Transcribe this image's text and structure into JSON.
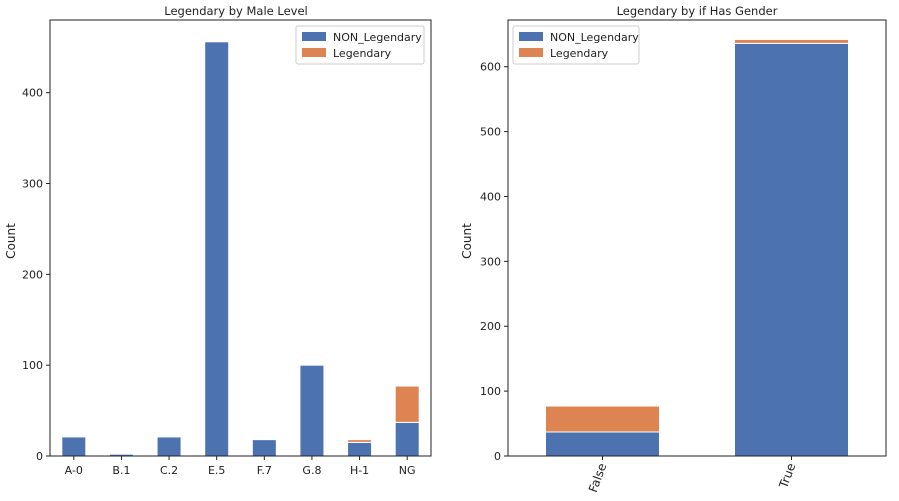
{
  "colors": {
    "non_legendary": "#4c72b0",
    "legendary": "#dd8452",
    "axis": "#222222"
  },
  "chart_data": [
    {
      "type": "bar",
      "stacked": true,
      "title": "Legendary by Male Level",
      "xlabel": "",
      "ylabel": "Count",
      "categories": [
        "A-0",
        "B.1",
        "C.2",
        "E.5",
        "F.7",
        "G.8",
        "H-1",
        "NG"
      ],
      "series": [
        {
          "name": "NON_Legendary",
          "values": [
            21,
            2,
            21,
            456,
            18,
            100,
            15,
            37
          ]
        },
        {
          "name": "Legendary",
          "values": [
            0,
            0,
            0,
            0,
            0,
            0,
            3,
            40
          ]
        }
      ],
      "ylim": [
        0,
        480
      ],
      "yticks": [
        0,
        100,
        200,
        300,
        400
      ],
      "xtick_rotation": 0,
      "legend_position": "top-right",
      "grid": false
    },
    {
      "type": "bar",
      "stacked": true,
      "title": "Legendary by if Has Gender",
      "xlabel": "",
      "ylabel": "Count",
      "categories": [
        "False",
        "True"
      ],
      "series": [
        {
          "name": "NON_Legendary",
          "values": [
            37,
            636
          ]
        },
        {
          "name": "Legendary",
          "values": [
            40,
            6
          ]
        }
      ],
      "ylim": [
        0,
        672
      ],
      "yticks": [
        0,
        100,
        200,
        300,
        400,
        500,
        600
      ],
      "xtick_rotation": -70,
      "legend_position": "top-left",
      "grid": false
    }
  ]
}
